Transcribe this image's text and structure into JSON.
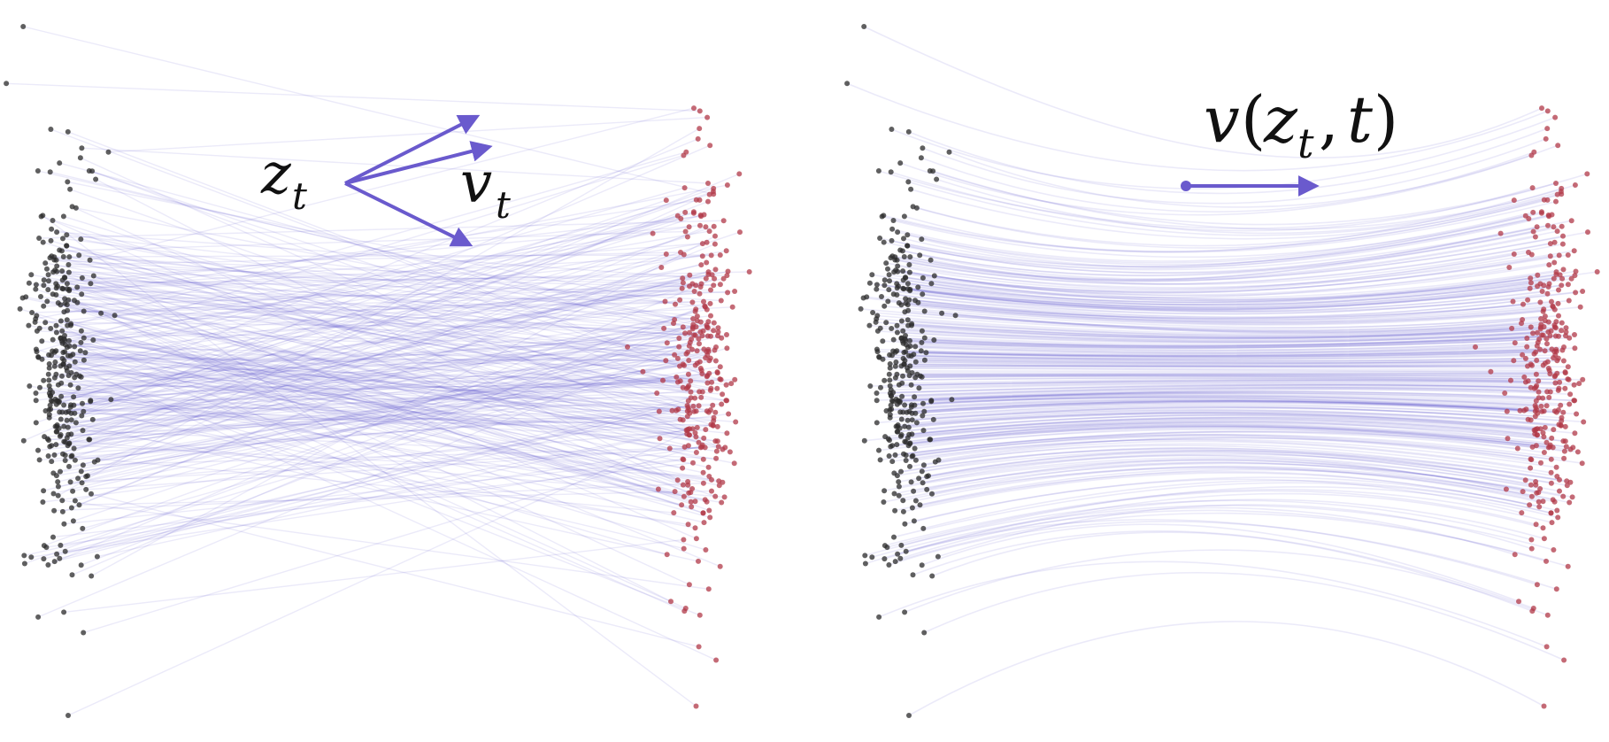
{
  "colors": {
    "source_points": "#2b2b2b",
    "target_points": "#b23a48",
    "trajectories": "#5b4fcf",
    "arrows": "#6a5acd",
    "labels": "#111111"
  },
  "left_panel": {
    "label_position_var": "z",
    "label_position_sub": "t",
    "label_velocity_var": "v",
    "label_velocity_sub": "t",
    "trajectory_style": "straight crossing lines"
  },
  "right_panel": {
    "label_field_var": "v",
    "label_field_open": "(",
    "label_field_arg_var": "z",
    "label_field_arg_sub": "t",
    "label_field_sep": ",",
    "label_field_t": "t",
    "label_field_close": ")",
    "trajectory_style": "smooth non-crossing curves"
  },
  "icons": {
    "left_arrows": "three-velocity-arrows-icon",
    "right_arrow": "single-velocity-arrow-icon"
  }
}
